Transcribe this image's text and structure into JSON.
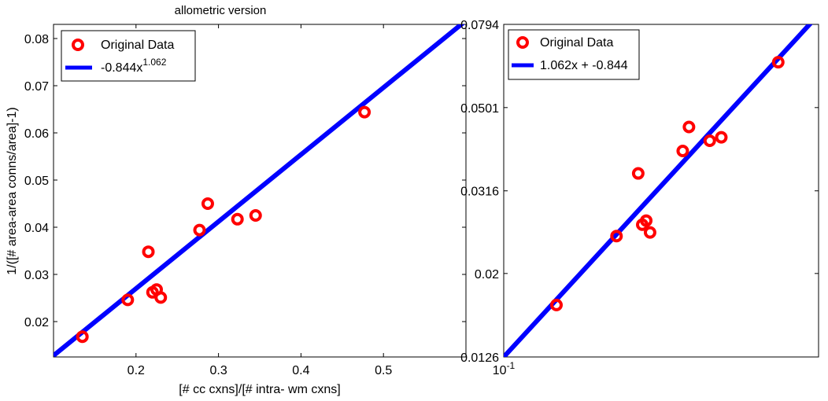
{
  "chart_data": [
    {
      "type": "scatter",
      "title": "allometric version",
      "xlabel": "[# cc cxns]/[# intra- wm cxns]",
      "ylabel": "1/([# area-area conns/area]-1)",
      "xlim": [
        0.1,
        0.6
      ],
      "ylim": [
        0.0125,
        0.083
      ],
      "xticks": [
        0.2,
        0.3,
        0.4,
        0.5
      ],
      "xtick_labels": [
        "0.2",
        "0.3",
        "0.4",
        "0.5"
      ],
      "yticks": [
        0.02,
        0.03,
        0.04,
        0.05,
        0.06,
        0.07,
        0.08
      ],
      "ytick_labels": [
        "0.02",
        "0.03",
        "0.04",
        "0.05",
        "0.06",
        "0.07",
        "0.08"
      ],
      "grid": false,
      "legend_position": "top-left",
      "series": [
        {
          "name": "Original Data",
          "kind": "markers",
          "color": "#ff0000",
          "x": [
            0.135,
            0.19,
            0.215,
            0.22,
            0.225,
            0.23,
            0.277,
            0.287,
            0.323,
            0.345,
            0.477
          ],
          "y": [
            0.0168,
            0.0246,
            0.0348,
            0.0262,
            0.0268,
            0.0251,
            0.0394,
            0.045,
            0.0417,
            0.0425,
            0.0644
          ]
        },
        {
          "name_parts": [
            "-0.844x",
            "1.062"
          ],
          "kind": "line",
          "color": "#0000ff",
          "x": [
            0.1,
            0.6
          ],
          "y": [
            0.0128,
            0.0838
          ]
        }
      ]
    },
    {
      "type": "scatter",
      "title": "",
      "xlabel": "",
      "ylabel": "",
      "xscale": "log",
      "yscale": "log",
      "xlim": [
        0.1,
        0.6
      ],
      "ylim": [
        0.0126,
        0.0794
      ],
      "xticks": [
        0.1
      ],
      "xtick_labels": [
        {
          "base": "10",
          "exp": "-1"
        }
      ],
      "yticks": [
        0.0126,
        0.02,
        0.0316,
        0.0501,
        0.0794
      ],
      "ytick_labels": [
        "0.0126",
        "0.02",
        "0.0316",
        "0.0501",
        "0.0794"
      ],
      "grid": false,
      "legend_position": "top-left",
      "series": [
        {
          "name": "Original Data",
          "kind": "markers",
          "color": "#ff0000",
          "x": [
            0.135,
            0.19,
            0.215,
            0.22,
            0.225,
            0.23,
            0.277,
            0.287,
            0.323,
            0.345,
            0.477
          ],
          "y": [
            0.0168,
            0.0246,
            0.0348,
            0.0262,
            0.0268,
            0.0251,
            0.0394,
            0.045,
            0.0417,
            0.0425,
            0.0644
          ]
        },
        {
          "name": "1.062x + -0.844",
          "kind": "line",
          "color": "#0000ff",
          "x": [
            0.1,
            0.6
          ],
          "y": [
            0.0126,
            0.0838
          ]
        }
      ]
    }
  ]
}
